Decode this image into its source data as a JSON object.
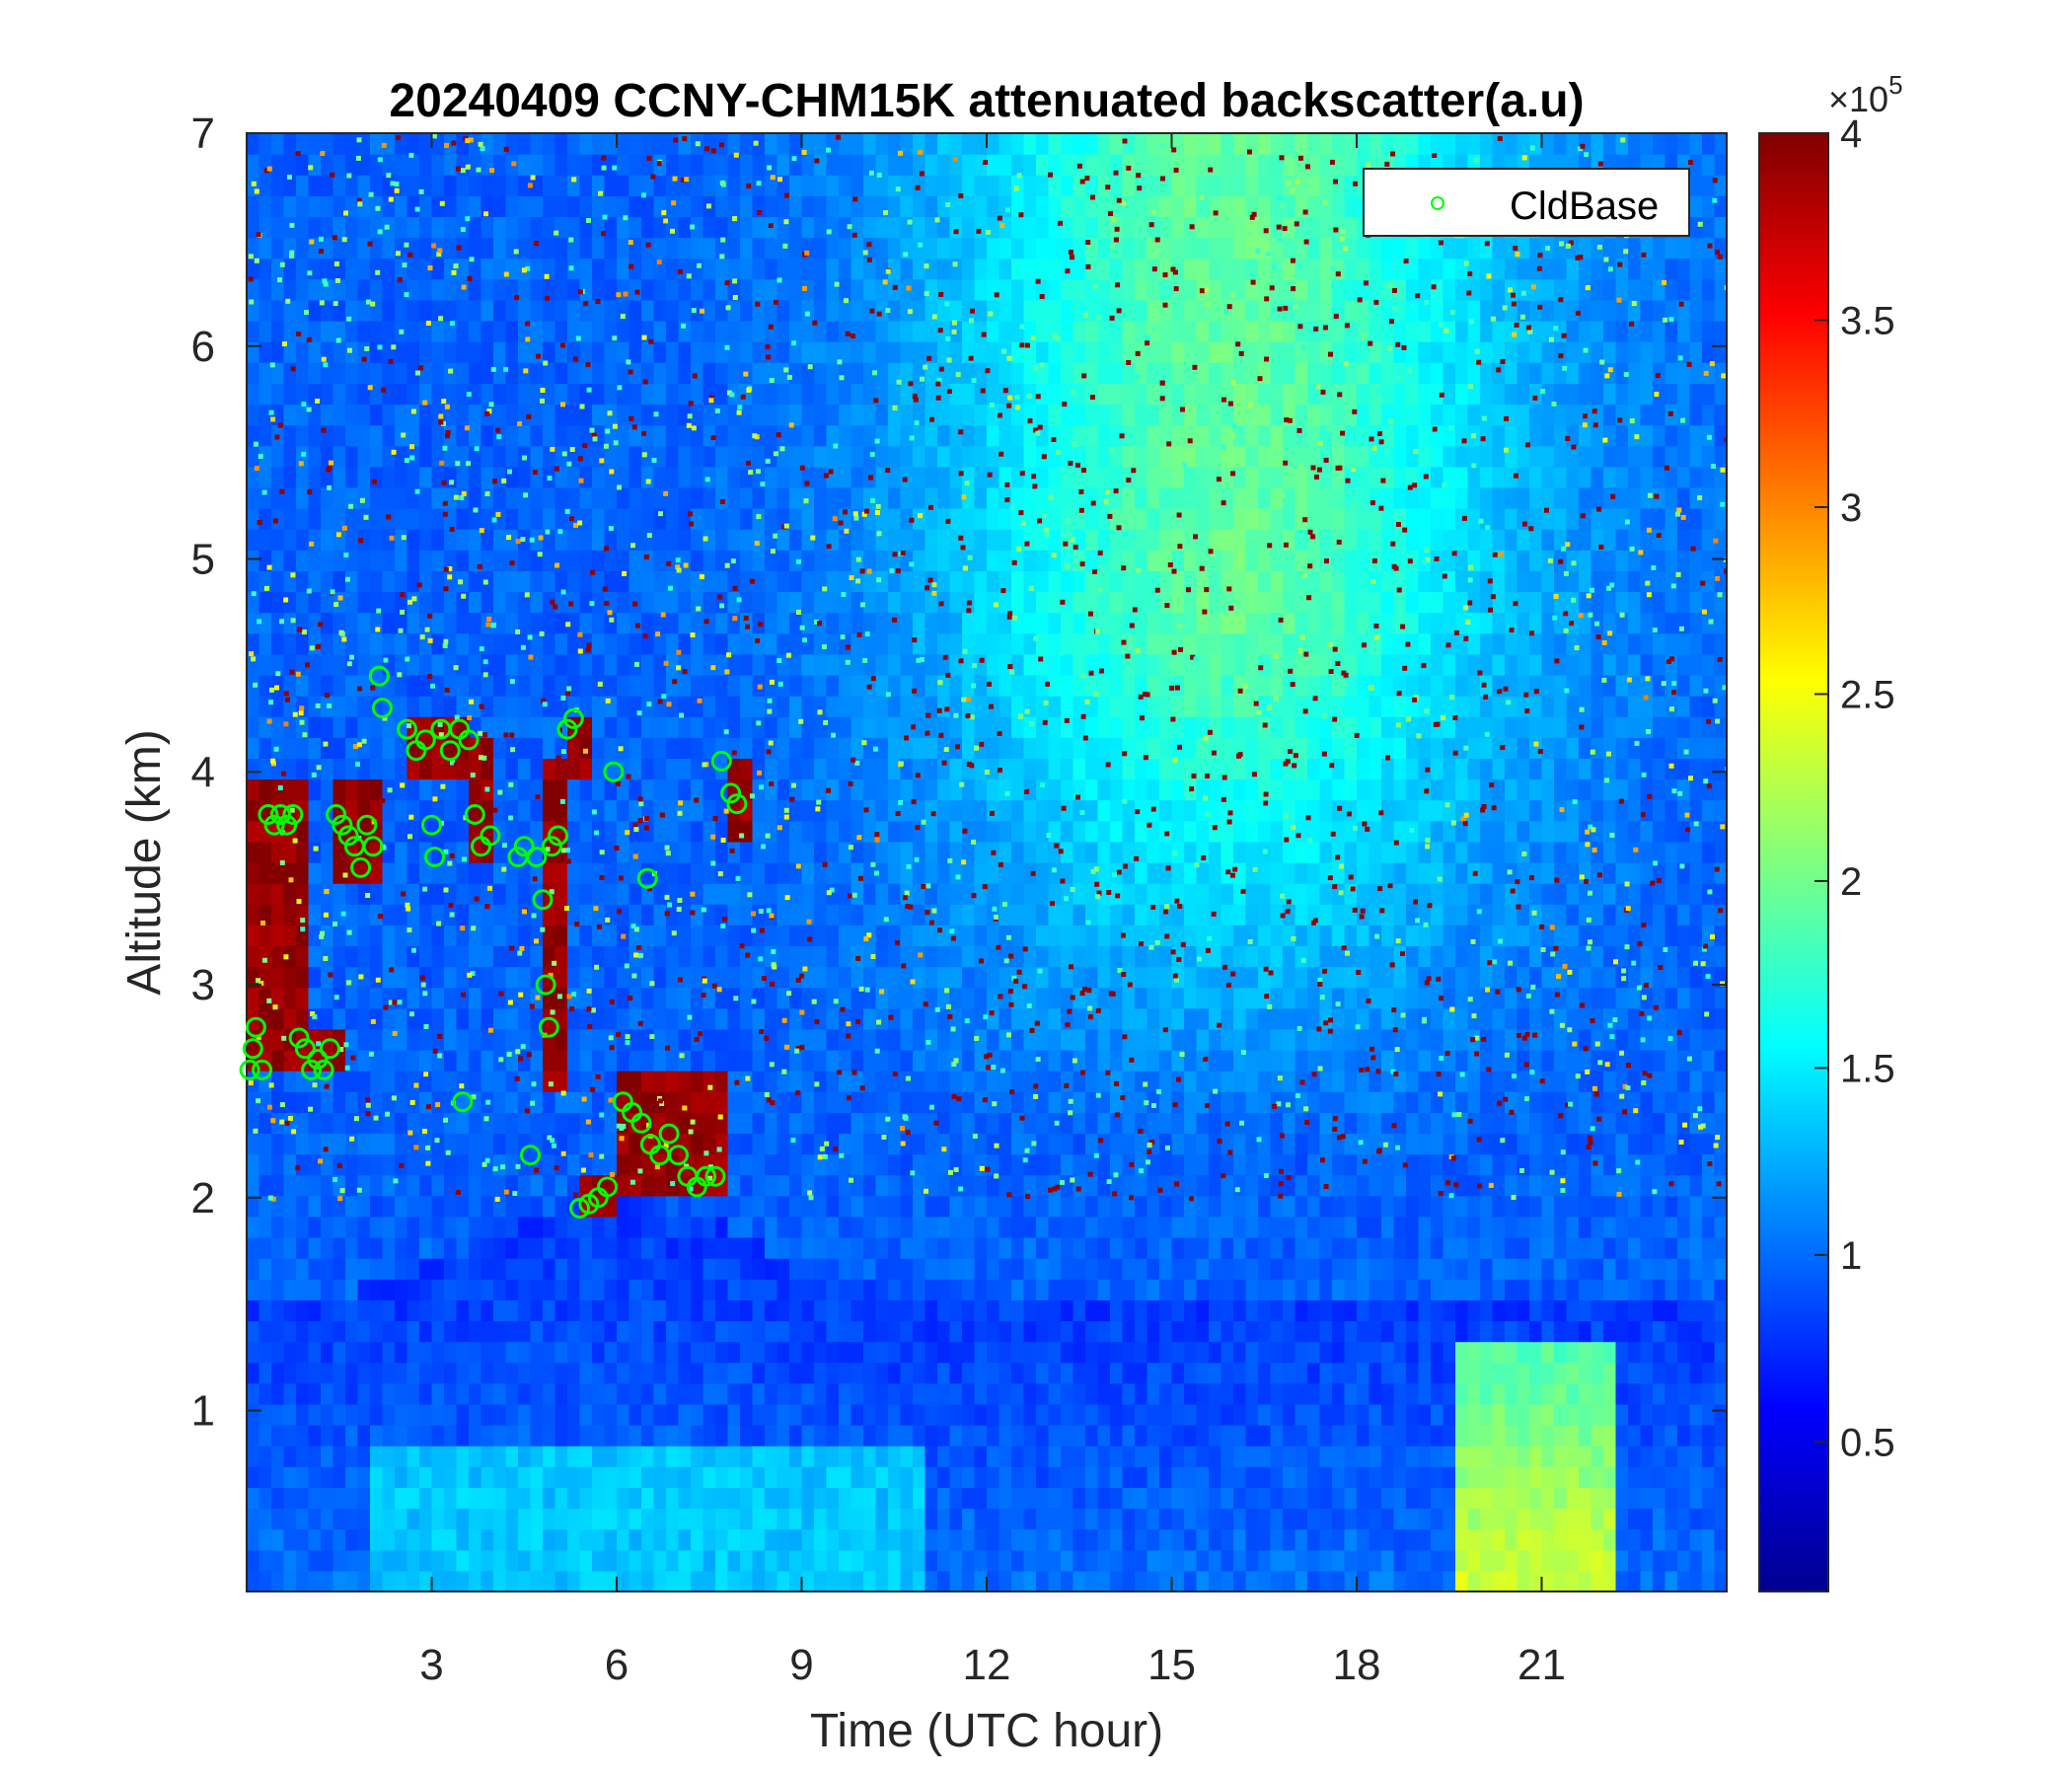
{
  "chart_data": {
    "type": "heatmap",
    "title": "20240409 CCNY-CHM15K attenuated backscatter(a.u)",
    "xlabel": "Time (UTC hour)",
    "ylabel": "Altitude (km)",
    "xlim": [
      0,
      24
    ],
    "ylim": [
      0.15,
      7
    ],
    "xticks": [
      3,
      6,
      9,
      12,
      15,
      18,
      21
    ],
    "xtick_labels": [
      "3",
      "6",
      "9",
      "12",
      "15",
      "18",
      "21"
    ],
    "yticks": [
      1,
      2,
      3,
      4,
      5,
      6,
      7
    ],
    "ytick_labels": [
      "1",
      "2",
      "3",
      "4",
      "5",
      "6",
      "7"
    ],
    "colorbar": {
      "colormap": "jet",
      "range": [
        10000,
        400000
      ],
      "ticks": [
        0.5,
        1,
        1.5,
        2,
        2.5,
        3,
        3.5,
        4
      ],
      "tick_labels": [
        "0.5",
        "1",
        "1.5",
        "2",
        "2.5",
        "3",
        "3.5",
        "4"
      ],
      "exponent_label": "×10",
      "exponent_power": "5"
    },
    "legend": {
      "position": "top-right",
      "entries": [
        {
          "label": "CldBase",
          "marker": "circle",
          "color": "#00ff00"
        }
      ]
    },
    "cloud_base": [
      {
        "t": 0.05,
        "z": 2.6
      },
      {
        "t": 0.1,
        "z": 2.7
      },
      {
        "t": 0.15,
        "z": 2.8
      },
      {
        "t": 0.25,
        "z": 2.6
      },
      {
        "t": 0.35,
        "z": 3.8
      },
      {
        "t": 0.45,
        "z": 3.75
      },
      {
        "t": 0.55,
        "z": 3.8
      },
      {
        "t": 0.65,
        "z": 3.75
      },
      {
        "t": 0.75,
        "z": 3.8
      },
      {
        "t": 0.85,
        "z": 2.75
      },
      {
        "t": 0.95,
        "z": 2.7
      },
      {
        "t": 1.05,
        "z": 2.6
      },
      {
        "t": 1.15,
        "z": 2.65
      },
      {
        "t": 1.25,
        "z": 2.6
      },
      {
        "t": 1.35,
        "z": 2.7
      },
      {
        "t": 1.45,
        "z": 3.8
      },
      {
        "t": 1.55,
        "z": 3.75
      },
      {
        "t": 1.65,
        "z": 3.7
      },
      {
        "t": 1.75,
        "z": 3.65
      },
      {
        "t": 1.85,
        "z": 3.55
      },
      {
        "t": 1.95,
        "z": 3.75
      },
      {
        "t": 2.05,
        "z": 3.65
      },
      {
        "t": 2.15,
        "z": 4.45
      },
      {
        "t": 2.2,
        "z": 4.3
      },
      {
        "t": 2.6,
        "z": 4.2
      },
      {
        "t": 2.75,
        "z": 4.1
      },
      {
        "t": 2.9,
        "z": 4.15
      },
      {
        "t": 3.0,
        "z": 3.75
      },
      {
        "t": 3.05,
        "z": 3.6
      },
      {
        "t": 3.15,
        "z": 4.2
      },
      {
        "t": 3.3,
        "z": 4.1
      },
      {
        "t": 3.45,
        "z": 4.2
      },
      {
        "t": 3.5,
        "z": 2.45
      },
      {
        "t": 3.6,
        "z": 4.15
      },
      {
        "t": 3.7,
        "z": 3.8
      },
      {
        "t": 3.8,
        "z": 3.65
      },
      {
        "t": 3.95,
        "z": 3.7
      },
      {
        "t": 4.4,
        "z": 3.6
      },
      {
        "t": 4.5,
        "z": 3.65
      },
      {
        "t": 4.6,
        "z": 2.2
      },
      {
        "t": 4.7,
        "z": 3.6
      },
      {
        "t": 4.8,
        "z": 3.4
      },
      {
        "t": 4.85,
        "z": 3.0
      },
      {
        "t": 4.9,
        "z": 2.8
      },
      {
        "t": 4.95,
        "z": 3.65
      },
      {
        "t": 5.05,
        "z": 3.7
      },
      {
        "t": 5.2,
        "z": 4.2
      },
      {
        "t": 5.3,
        "z": 4.25
      },
      {
        "t": 5.4,
        "z": 1.95
      },
      {
        "t": 5.55,
        "z": 1.97
      },
      {
        "t": 5.7,
        "z": 2.0
      },
      {
        "t": 5.85,
        "z": 2.05
      },
      {
        "t": 5.95,
        "z": 4.0
      },
      {
        "t": 6.1,
        "z": 2.45
      },
      {
        "t": 6.25,
        "z": 2.4
      },
      {
        "t": 6.4,
        "z": 2.35
      },
      {
        "t": 6.5,
        "z": 3.5
      },
      {
        "t": 6.55,
        "z": 2.25
      },
      {
        "t": 6.7,
        "z": 2.2
      },
      {
        "t": 6.85,
        "z": 2.3
      },
      {
        "t": 7.0,
        "z": 2.2
      },
      {
        "t": 7.15,
        "z": 2.1
      },
      {
        "t": 7.3,
        "z": 2.05
      },
      {
        "t": 7.45,
        "z": 2.1
      },
      {
        "t": 7.6,
        "z": 2.1
      },
      {
        "t": 7.7,
        "z": 4.05
      },
      {
        "t": 7.85,
        "z": 3.9
      },
      {
        "t": 7.95,
        "z": 3.85
      }
    ]
  }
}
